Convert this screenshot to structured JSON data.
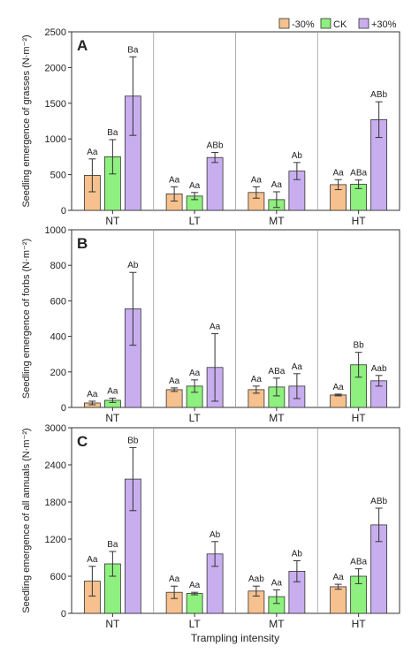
{
  "chart_data": {
    "type": "bar",
    "xlabel": "Trampling intensity",
    "categories": [
      "NT",
      "LT",
      "MT",
      "HT"
    ],
    "legend": {
      "placement": "top-right",
      "entries": [
        {
          "name": "-30%",
          "color": "#F6C18E"
        },
        {
          "name": "CK",
          "color": "#8EF07E"
        },
        {
          "name": "+30%",
          "color": "#C8AEEE"
        }
      ]
    },
    "bar_edge_color": "#333333",
    "grid": false,
    "panels": [
      {
        "letter": "A",
        "ylabel": "Seedling emergence of grasses (N·m⁻²)",
        "ylim": [
          0,
          2500
        ],
        "yticks": [
          0,
          500,
          1000,
          1500,
          2000,
          2500
        ],
        "series": [
          {
            "name": "-30%",
            "values": [
              490,
              230,
              250,
              360
            ],
            "errors": [
              230,
              100,
              80,
              70
            ],
            "letters": [
              "Aa",
              "Aa",
              "Aa",
              "Aa"
            ]
          },
          {
            "name": "CK",
            "values": [
              750,
              200,
              150,
              365
            ],
            "errors": [
              240,
              50,
              110,
              60
            ],
            "letters": [
              "Ba",
              "Aa",
              "Aa",
              "ABa"
            ]
          },
          {
            "name": "+30%",
            "values": [
              1600,
              740,
              550,
              1270
            ],
            "errors": [
              550,
              70,
              120,
              250
            ],
            "letters": [
              "Ba",
              "ABb",
              "Ab",
              "ABb"
            ]
          }
        ]
      },
      {
        "letter": "B",
        "ylabel": "Seedling emergence of forbs (N·m⁻²)",
        "ylim": [
          0,
          1000
        ],
        "yticks": [
          0,
          200,
          400,
          600,
          800,
          1000
        ],
        "series": [
          {
            "name": "-30%",
            "values": [
              25,
              100,
              100,
              70
            ],
            "errors": [
              10,
              10,
              20,
              5
            ],
            "letters": [
              "Aa",
              "Aa",
              "Aa",
              "Aa"
            ]
          },
          {
            "name": "CK",
            "values": [
              40,
              120,
              115,
              240
            ],
            "errors": [
              12,
              35,
              50,
              70
            ],
            "letters": [
              "Aa",
              "Aa",
              "ABa",
              "Bb"
            ]
          },
          {
            "name": "+30%",
            "values": [
              555,
              225,
              120,
              150
            ],
            "errors": [
              205,
              190,
              70,
              30
            ],
            "letters": [
              "Ab",
              "Aa",
              "Aa",
              "Aab"
            ]
          }
        ]
      },
      {
        "letter": "C",
        "ylabel": "Seedling emergence of all annuals (N·m⁻²)",
        "ylim": [
          0,
          3000
        ],
        "yticks": [
          0,
          600,
          1200,
          1800,
          2400,
          3000
        ],
        "series": [
          {
            "name": "-30%",
            "values": [
              520,
              340,
              360,
              430
            ],
            "errors": [
              240,
              100,
              80,
              40
            ],
            "letters": [
              "Aa",
              "Aa",
              "Aab",
              "Aa"
            ]
          },
          {
            "name": "CK",
            "values": [
              800,
              320,
              270,
              600
            ],
            "errors": [
              200,
              20,
              110,
              120
            ],
            "letters": [
              "Ba",
              "Aa",
              "Aa",
              "ABa"
            ]
          },
          {
            "name": "+30%",
            "values": [
              2170,
              960,
              680,
              1430
            ],
            "errors": [
              510,
              200,
              170,
              270
            ],
            "letters": [
              "Bb",
              "Ab",
              "Ab",
              "ABb"
            ]
          }
        ]
      }
    ]
  }
}
